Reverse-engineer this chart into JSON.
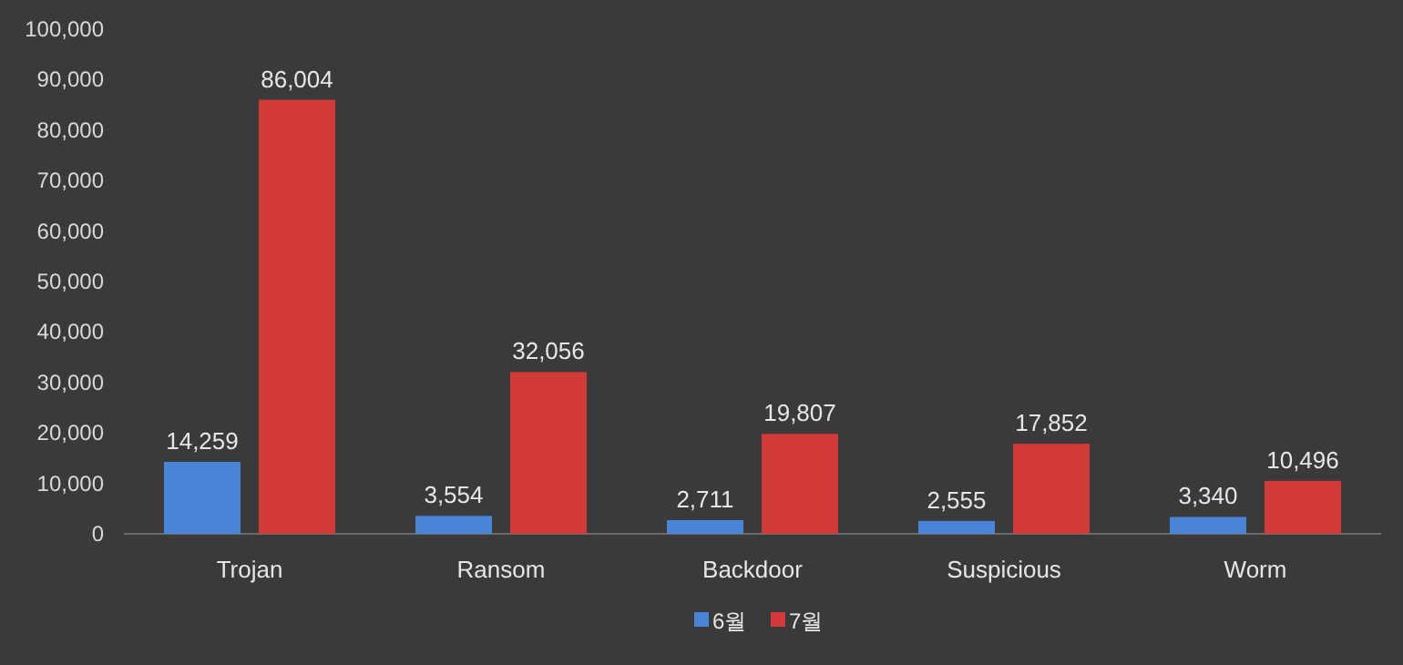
{
  "chart_data": {
    "type": "bar",
    "categories": [
      "Trojan",
      "Ransom",
      "Backdoor",
      "Suspicious",
      "Worm"
    ],
    "series": [
      {
        "name": "6월",
        "color": "#4a84d6",
        "values": [
          14259,
          3554,
          2711,
          2555,
          3340
        ],
        "value_labels": [
          "14,259",
          "3,554",
          "2,711",
          "2,555",
          "3,340"
        ]
      },
      {
        "name": "7월",
        "color": "#d23a3a",
        "values": [
          86004,
          32056,
          19807,
          17852,
          10496
        ],
        "value_labels": [
          "86,004",
          "32,056",
          "19,807",
          "17,852",
          "10,496"
        ]
      }
    ],
    "ylim": [
      0,
      100000
    ],
    "yticks": [
      {
        "value": 0,
        "label": "0"
      },
      {
        "value": 10000,
        "label": "10,000"
      },
      {
        "value": 20000,
        "label": "20,000"
      },
      {
        "value": 30000,
        "label": "30,000"
      },
      {
        "value": 40000,
        "label": "40,000"
      },
      {
        "value": 50000,
        "label": "50,000"
      },
      {
        "value": 60000,
        "label": "60,000"
      },
      {
        "value": 70000,
        "label": "70,000"
      },
      {
        "value": 80000,
        "label": "80,000"
      },
      {
        "value": 90000,
        "label": "90,000"
      },
      {
        "value": 100000,
        "label": "100,000"
      }
    ],
    "legend": "bottom",
    "grid": false
  }
}
